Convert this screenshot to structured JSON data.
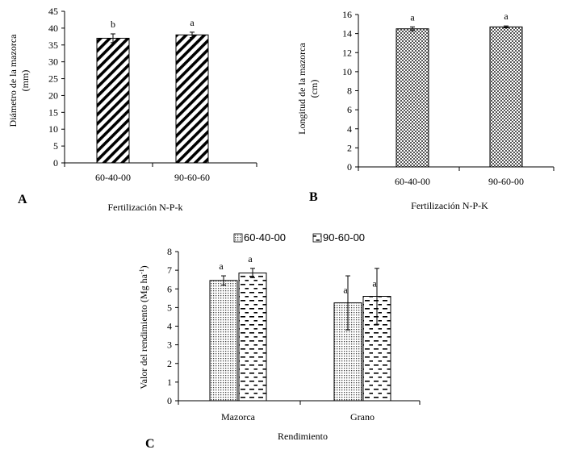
{
  "chart_data": [
    {
      "type": "bar",
      "panel": "A",
      "title": "",
      "categories": [
        "60-40-00",
        "90-60-60"
      ],
      "values": [
        37,
        38
      ],
      "errors": [
        1.3,
        0.8
      ],
      "significance": [
        "b",
        "a"
      ],
      "xlabel": "Fertilización N-P-k",
      "ylabel": [
        "Diámetro de la mazorca",
        "(mm)"
      ],
      "ylim": [
        0,
        45
      ],
      "yticks": [
        0,
        5,
        10,
        15,
        20,
        25,
        30,
        35,
        40,
        45
      ],
      "pattern": "diagonal-stripes"
    },
    {
      "type": "bar",
      "panel": "B",
      "title": "",
      "categories": [
        "60-40-00",
        "90-60-00"
      ],
      "values": [
        14.5,
        14.7
      ],
      "errors": [
        0.2,
        0.1
      ],
      "significance": [
        "a",
        "a"
      ],
      "xlabel": "Fertilización N-P-K",
      "ylabel": [
        "Longitud de la mazorca",
        "(cm)"
      ],
      "ylim": [
        0,
        16
      ],
      "yticks": [
        0,
        2,
        4,
        6,
        8,
        10,
        12,
        14,
        16
      ],
      "pattern": "checker"
    },
    {
      "type": "bar",
      "panel": "C",
      "title": "",
      "categories": [
        "Mazorca",
        "Grano"
      ],
      "series": [
        {
          "name": "60-40-00",
          "values": [
            6.45,
            5.25
          ],
          "errors": [
            0.25,
            1.45
          ],
          "significance": [
            "a",
            "a"
          ],
          "pattern": "dots"
        },
        {
          "name": "90-60-00",
          "values": [
            6.85,
            5.6
          ],
          "errors": [
            0.25,
            1.5
          ],
          "significance": [
            "a",
            "a"
          ],
          "pattern": "dashes"
        }
      ],
      "xlabel": "Rendimiento",
      "ylabel": "Valor del rendimiento (Mg ha",
      "ylabel_sup": "-1",
      "ylabel_close": ")",
      "ylim": [
        0,
        8
      ],
      "yticks": [
        0,
        1,
        2,
        3,
        4,
        5,
        6,
        7,
        8
      ],
      "legend_position": "top"
    }
  ],
  "colors": {
    "ink": "#000000",
    "background": "#ffffff"
  }
}
